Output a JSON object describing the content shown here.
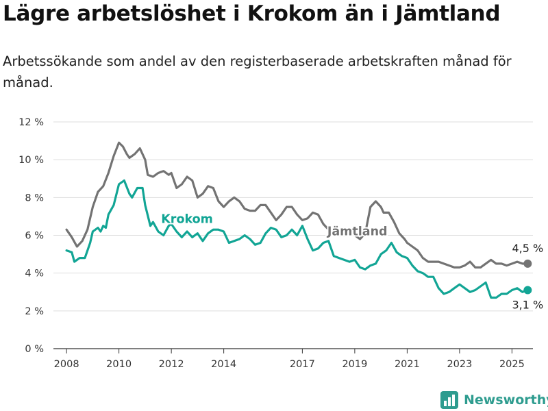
{
  "title": "Lägre arbetslöshet i Krokom än i Jämtland",
  "subtitle": "Arbetssökande som andel av den registerbaserade arbetskraften månad för månad.",
  "brand": {
    "name": "Newsworthy",
    "icon": "bar-chart-logo-icon"
  },
  "colors": {
    "krokom": "#12a595",
    "jamtland": "#737373",
    "grid": "#dddddd",
    "axis": "#333333",
    "brand": "#2e9c8f"
  },
  "chart_data": {
    "type": "line",
    "title": "Lägre arbetslöshet i Krokom än i Jämtland",
    "subtitle": "Arbetssökande som andel av den registerbaserade arbetskraften månad för månad.",
    "xlabel": "",
    "ylabel": "",
    "ylim": [
      0,
      12
    ],
    "xlim": [
      2007.5,
      2025.8
    ],
    "y_ticks": [
      {
        "value": 0,
        "label": "0 %"
      },
      {
        "value": 2,
        "label": "2 %"
      },
      {
        "value": 4,
        "label": "4 %"
      },
      {
        "value": 6,
        "label": "6 %"
      },
      {
        "value": 8,
        "label": "8 %"
      },
      {
        "value": 10,
        "label": "10 %"
      },
      {
        "value": 12,
        "label": "12 %"
      }
    ],
    "x_ticks": [
      {
        "value": 2008,
        "label": "2008"
      },
      {
        "value": 2010,
        "label": "2010"
      },
      {
        "value": 2012,
        "label": "2012"
      },
      {
        "value": 2014,
        "label": "2014"
      },
      {
        "value": 2017,
        "label": "2017"
      },
      {
        "value": 2019,
        "label": "2019"
      },
      {
        "value": 2021,
        "label": "2021"
      },
      {
        "value": 2023,
        "label": "2023"
      },
      {
        "value": 2025,
        "label": "2025"
      }
    ],
    "grid": true,
    "legend": "inline labels",
    "series": [
      {
        "name": "Jämtland",
        "color": "#737373",
        "label_at": [
          2019.1,
          6.0
        ],
        "end_label": "4,5 %",
        "x": [
          2008.0,
          2008.2,
          2008.4,
          2008.6,
          2008.8,
          2009.0,
          2009.2,
          2009.4,
          2009.6,
          2009.8,
          2010.0,
          2010.15,
          2010.3,
          2010.4,
          2010.6,
          2010.8,
          2011.0,
          2011.1,
          2011.3,
          2011.5,
          2011.7,
          2011.9,
          2012.0,
          2012.2,
          2012.4,
          2012.6,
          2012.8,
          2013.0,
          2013.2,
          2013.4,
          2013.6,
          2013.8,
          2014.0,
          2014.2,
          2014.4,
          2014.6,
          2014.8,
          2015.0,
          2015.2,
          2015.4,
          2015.6,
          2015.8,
          2016.0,
          2016.2,
          2016.4,
          2016.6,
          2016.8,
          2017.0,
          2017.2,
          2017.4,
          2017.6,
          2017.8,
          2018.0,
          2018.2,
          2018.4,
          2018.6,
          2018.8,
          2019.0,
          2019.2,
          2019.4,
          2019.6,
          2019.8,
          2020.0,
          2020.1,
          2020.3,
          2020.5,
          2020.7,
          2020.9,
          2021.0,
          2021.2,
          2021.4,
          2021.6,
          2021.8,
          2022.0,
          2022.2,
          2022.4,
          2022.6,
          2022.8,
          2023.0,
          2023.2,
          2023.4,
          2023.6,
          2023.8,
          2024.0,
          2024.2,
          2024.4,
          2024.6,
          2024.8,
          2025.0,
          2025.2,
          2025.4,
          2025.6
        ],
        "values": [
          6.3,
          5.9,
          5.4,
          5.7,
          6.3,
          7.5,
          8.3,
          8.6,
          9.3,
          10.2,
          10.9,
          10.7,
          10.3,
          10.1,
          10.3,
          10.6,
          10.0,
          9.2,
          9.1,
          9.3,
          9.4,
          9.2,
          9.3,
          8.5,
          8.7,
          9.1,
          8.9,
          8.0,
          8.2,
          8.6,
          8.5,
          7.8,
          7.5,
          7.8,
          8.0,
          7.8,
          7.4,
          7.3,
          7.3,
          7.6,
          7.6,
          7.2,
          6.8,
          7.1,
          7.5,
          7.5,
          7.1,
          6.8,
          6.9,
          7.2,
          7.1,
          6.6,
          6.3,
          6.1,
          6.0,
          6.0,
          6.1,
          6.0,
          5.8,
          6.1,
          7.5,
          7.8,
          7.5,
          7.2,
          7.2,
          6.7,
          6.1,
          5.8,
          5.6,
          5.4,
          5.2,
          4.8,
          4.6,
          4.6,
          4.6,
          4.5,
          4.4,
          4.3,
          4.3,
          4.4,
          4.6,
          4.3,
          4.3,
          4.5,
          4.7,
          4.5,
          4.5,
          4.4,
          4.5,
          4.6,
          4.5,
          4.5
        ]
      },
      {
        "name": "Krokom",
        "color": "#12a595",
        "label_at": [
          2012.6,
          6.65
        ],
        "end_label": "3,1 %",
        "x": [
          2008.0,
          2008.2,
          2008.3,
          2008.5,
          2008.7,
          2008.9,
          2009.0,
          2009.2,
          2009.3,
          2009.4,
          2009.5,
          2009.6,
          2009.8,
          2010.0,
          2010.2,
          2010.4,
          2010.5,
          2010.7,
          2010.9,
          2011.0,
          2011.2,
          2011.3,
          2011.5,
          2011.7,
          2011.9,
          2012.0,
          2012.2,
          2012.4,
          2012.6,
          2012.8,
          2013.0,
          2013.2,
          2013.4,
          2013.6,
          2013.8,
          2014.0,
          2014.2,
          2014.4,
          2014.6,
          2014.8,
          2015.0,
          2015.2,
          2015.4,
          2015.6,
          2015.8,
          2016.0,
          2016.2,
          2016.4,
          2016.6,
          2016.8,
          2017.0,
          2017.2,
          2017.4,
          2017.6,
          2017.8,
          2018.0,
          2018.2,
          2018.4,
          2018.6,
          2018.8,
          2019.0,
          2019.2,
          2019.4,
          2019.6,
          2019.8,
          2020.0,
          2020.2,
          2020.4,
          2020.6,
          2020.8,
          2021.0,
          2021.2,
          2021.4,
          2021.6,
          2021.8,
          2022.0,
          2022.2,
          2022.4,
          2022.6,
          2022.8,
          2023.0,
          2023.2,
          2023.4,
          2023.6,
          2023.8,
          2024.0,
          2024.2,
          2024.4,
          2024.6,
          2024.8,
          2025.0,
          2025.2,
          2025.4,
          2025.6
        ],
        "values": [
          5.2,
          5.1,
          4.6,
          4.8,
          4.8,
          5.6,
          6.2,
          6.4,
          6.2,
          6.5,
          6.4,
          7.1,
          7.6,
          8.7,
          8.9,
          8.2,
          8.0,
          8.5,
          8.5,
          7.6,
          6.5,
          6.7,
          6.2,
          6.0,
          6.5,
          6.6,
          6.2,
          5.9,
          6.2,
          5.9,
          6.1,
          5.7,
          6.1,
          6.3,
          6.3,
          6.2,
          5.6,
          5.7,
          5.8,
          6.0,
          5.8,
          5.5,
          5.6,
          6.1,
          6.4,
          6.3,
          5.9,
          6.0,
          6.3,
          6.0,
          6.5,
          5.8,
          5.2,
          5.3,
          5.6,
          5.7,
          4.9,
          4.8,
          4.7,
          4.6,
          4.7,
          4.3,
          4.2,
          4.4,
          4.5,
          5.0,
          5.2,
          5.6,
          5.1,
          4.9,
          4.8,
          4.4,
          4.1,
          4.0,
          3.8,
          3.8,
          3.2,
          2.9,
          3.0,
          3.2,
          3.4,
          3.2,
          3.0,
          3.1,
          3.3,
          3.5,
          2.7,
          2.7,
          2.9,
          2.9,
          3.1,
          3.2,
          3.0,
          3.1
        ]
      }
    ]
  }
}
